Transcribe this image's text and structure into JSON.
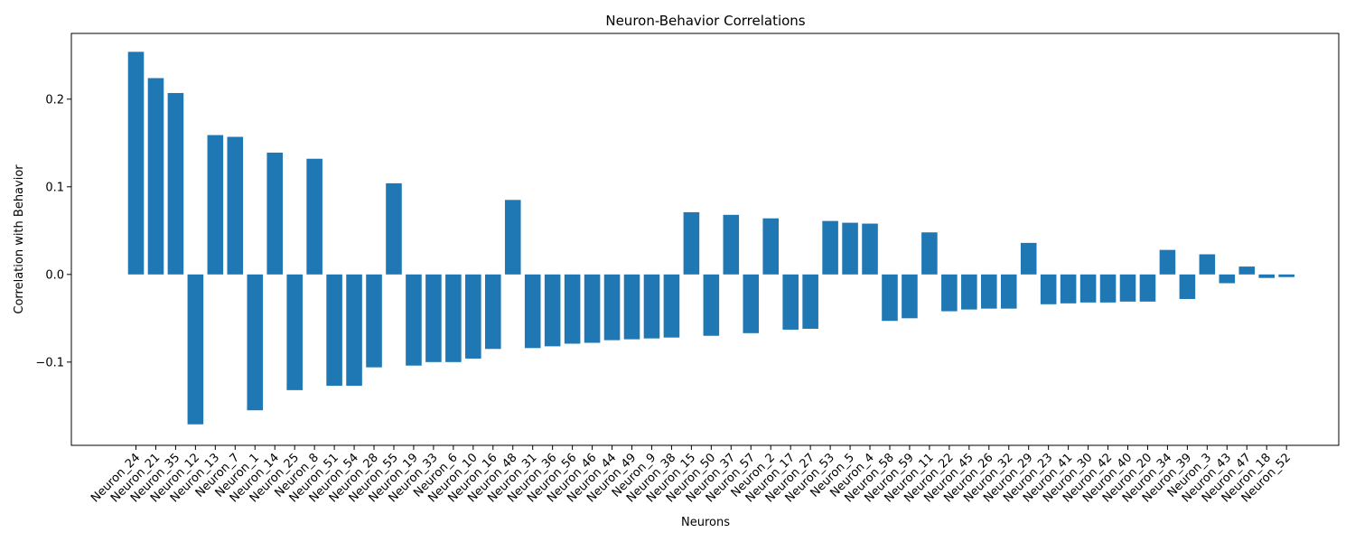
{
  "chart_data": {
    "type": "bar",
    "title": "Neuron-Behavior Correlations",
    "xlabel": "Neurons",
    "ylabel": "Correlation with Behavior",
    "ylim": [
      -0.195,
      0.275
    ],
    "yticks": [
      -0.1,
      0.0,
      0.1,
      0.2
    ],
    "ytick_labels": [
      "−0.1",
      "0.0",
      "0.1",
      "0.2"
    ],
    "grid": false,
    "bar_color": "#1f77b4",
    "categories": [
      "Neuron_24",
      "Neuron_21",
      "Neuron_35",
      "Neuron_12",
      "Neuron_13",
      "Neuron_7",
      "Neuron_1",
      "Neuron_14",
      "Neuron_25",
      "Neuron_8",
      "Neuron_51",
      "Neuron_54",
      "Neuron_28",
      "Neuron_55",
      "Neuron_19",
      "Neuron_33",
      "Neuron_6",
      "Neuron_10",
      "Neuron_16",
      "Neuron_48",
      "Neuron_31",
      "Neuron_36",
      "Neuron_56",
      "Neuron_46",
      "Neuron_44",
      "Neuron_49",
      "Neuron_9",
      "Neuron_38",
      "Neuron_15",
      "Neuron_50",
      "Neuron_37",
      "Neuron_57",
      "Neuron_2",
      "Neuron_17",
      "Neuron_27",
      "Neuron_53",
      "Neuron_5",
      "Neuron_4",
      "Neuron_58",
      "Neuron_59",
      "Neuron_11",
      "Neuron_22",
      "Neuron_45",
      "Neuron_26",
      "Neuron_32",
      "Neuron_29",
      "Neuron_23",
      "Neuron_41",
      "Neuron_30",
      "Neuron_42",
      "Neuron_40",
      "Neuron_20",
      "Neuron_34",
      "Neuron_39",
      "Neuron_3",
      "Neuron_43",
      "Neuron_47",
      "Neuron_18",
      "Neuron_52"
    ],
    "values": [
      0.254,
      0.224,
      0.207,
      -0.171,
      0.159,
      0.157,
      -0.155,
      0.139,
      -0.132,
      0.132,
      -0.127,
      -0.127,
      -0.106,
      0.104,
      -0.104,
      -0.1,
      -0.1,
      -0.096,
      -0.085,
      0.085,
      -0.084,
      -0.082,
      -0.079,
      -0.078,
      -0.075,
      -0.074,
      -0.073,
      -0.072,
      0.071,
      -0.07,
      0.068,
      -0.067,
      0.064,
      -0.063,
      -0.062,
      0.061,
      0.059,
      0.058,
      -0.053,
      -0.05,
      0.048,
      -0.042,
      -0.04,
      -0.039,
      -0.039,
      0.036,
      -0.034,
      -0.033,
      -0.032,
      -0.032,
      -0.031,
      -0.031,
      0.028,
      -0.028,
      0.023,
      -0.01,
      0.009,
      -0.004,
      -0.003
    ]
  }
}
